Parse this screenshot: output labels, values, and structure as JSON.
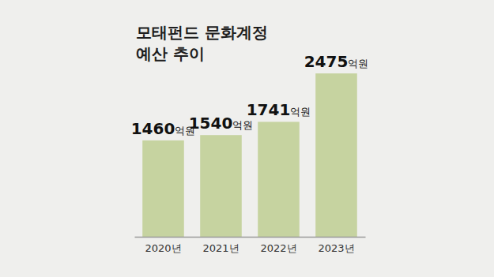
{
  "chart_data": {
    "type": "bar",
    "title": "모태펀드 문화계정\n예산 추이",
    "categories": [
      "2020년",
      "2021년",
      "2022년",
      "2023년"
    ],
    "values": [
      1460,
      1540,
      1741,
      2475
    ],
    "value_labels": [
      "1460억원",
      "1540억원",
      "1741억원",
      "2475억원"
    ],
    "color": "#c6d3a0",
    "data_labels": true,
    "tick_labels": "x"
  }
}
